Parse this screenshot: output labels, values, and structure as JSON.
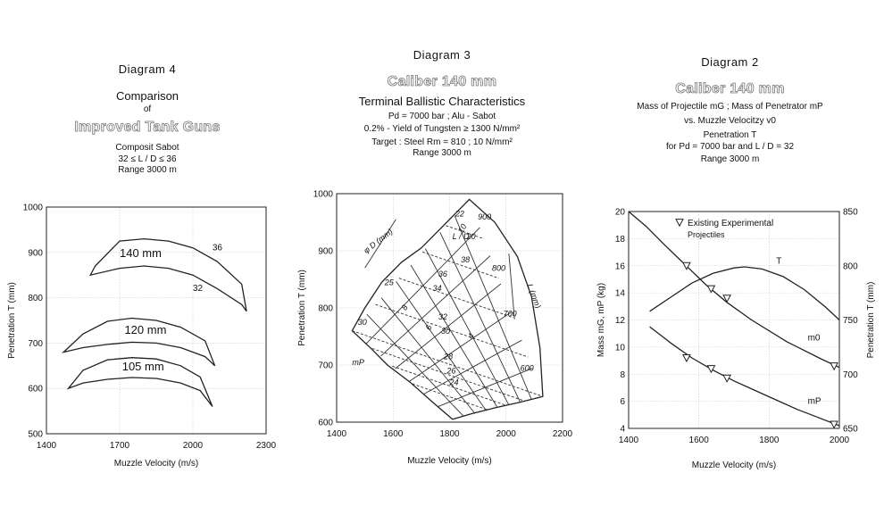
{
  "panels": {
    "d4": {
      "diagram": "Diagram  4",
      "title": "Comparison",
      "of": "of",
      "subtitle": "Improved Tank Guns",
      "info1": "Composit Sabot",
      "info2": "32  ≤  L / D  ≤  36",
      "info3": "Range  3000  m"
    },
    "d3": {
      "diagram": "Diagram  3",
      "caliber": "Caliber  140 mm",
      "title": "Terminal Ballistic Characteristics",
      "info1": "Pd = 7000 bar ; Alu - Sabot",
      "info2": "0.2% - Yield of Tungsten ≥ 1300 N/mm²",
      "info3": "Target : Steel Rm = 810 ; 10 N/mm²",
      "info4": "Range  3000 m"
    },
    "d2": {
      "diagram": "Diagram  2",
      "caliber": "Caliber  140 mm",
      "title": "Mass of Projectile mG ; Mass of Penetrator mP",
      "vs": "vs.  Muzzle Velocitzy v0",
      "info1": "Penetration T",
      "info2": "for  Pd = 7000 bar  and  L / D = 32",
      "info3": "Range  3000 m"
    }
  },
  "chart_data": [
    {
      "type": "line",
      "title": "Comparison of Improved Tank Guns",
      "xlabel": "Muzzle Velocity  (m/s)",
      "ylabel": "Penetration T (mm)",
      "xlim": [
        1400,
        2300
      ],
      "ylim": [
        500,
        1000
      ],
      "xticks": [
        "1400",
        "1700",
        "2000",
        "2300"
      ],
      "yticks": [
        "500",
        "600",
        "700",
        "800",
        "900",
        "1000"
      ],
      "grid": true,
      "series": [
        {
          "name": "140 mm",
          "upper_label": "36",
          "lower_label": "32",
          "upper": [
            [
              1600,
              870
            ],
            [
              1700,
              925
            ],
            [
              1800,
              930
            ],
            [
              1900,
              925
            ],
            [
              2000,
              910
            ],
            [
              2100,
              880
            ],
            [
              2200,
              830
            ],
            [
              2220,
              770
            ]
          ],
          "lower": [
            [
              1580,
              850
            ],
            [
              1700,
              865
            ],
            [
              1800,
              870
            ],
            [
              1900,
              865
            ],
            [
              2000,
              850
            ],
            [
              2100,
              820
            ],
            [
              2200,
              785
            ],
            [
              2220,
              770
            ]
          ]
        },
        {
          "name": "120 mm",
          "upper": [
            [
              1470,
              680
            ],
            [
              1550,
              720
            ],
            [
              1650,
              748
            ],
            [
              1750,
              755
            ],
            [
              1850,
              750
            ],
            [
              1950,
              735
            ],
            [
              2050,
              705
            ],
            [
              2090,
              650
            ]
          ],
          "lower": [
            [
              1470,
              680
            ],
            [
              1550,
              690
            ],
            [
              1650,
              697
            ],
            [
              1750,
              702
            ],
            [
              1850,
              700
            ],
            [
              1950,
              690
            ],
            [
              2050,
              670
            ],
            [
              2090,
              650
            ]
          ]
        },
        {
          "name": "105 mm",
          "upper": [
            [
              1490,
              600
            ],
            [
              1550,
              640
            ],
            [
              1650,
              663
            ],
            [
              1750,
              668
            ],
            [
              1850,
              665
            ],
            [
              1950,
              650
            ],
            [
              2030,
              625
            ],
            [
              2080,
              560
            ]
          ],
          "lower": [
            [
              1490,
              600
            ],
            [
              1550,
              612
            ],
            [
              1650,
              620
            ],
            [
              1750,
              624
            ],
            [
              1850,
              622
            ],
            [
              1950,
              612
            ],
            [
              2030,
              595
            ],
            [
              2080,
              560
            ]
          ]
        }
      ]
    },
    {
      "type": "line",
      "title": "Terminal Ballistic Characteristics",
      "xlabel": "Muzzle Velocity (m/s)",
      "ylabel": "Penetration T (mm)",
      "xlim": [
        1400,
        2200
      ],
      "ylim": [
        600,
        1000
      ],
      "xticks": [
        "1400",
        "1600",
        "1800",
        "2000",
        "2200"
      ],
      "yticks": [
        "600",
        "700",
        "800",
        "900",
        "1000"
      ],
      "grid": true,
      "boundary": [
        [
          1455,
          760
        ],
        [
          1500,
          800
        ],
        [
          1560,
          845
        ],
        [
          1630,
          880
        ],
        [
          1700,
          905
        ],
        [
          1780,
          945
        ],
        [
          1870,
          990
        ],
        [
          1960,
          950
        ],
        [
          2040,
          890
        ],
        [
          2090,
          820
        ],
        [
          2120,
          730
        ],
        [
          2130,
          645
        ],
        [
          2050,
          635
        ],
        [
          1960,
          625
        ],
        [
          1880,
          615
        ],
        [
          1810,
          605
        ],
        [
          1740,
          635
        ],
        [
          1660,
          670
        ],
        [
          1580,
          700
        ],
        [
          1520,
          730
        ],
        [
          1455,
          760
        ]
      ],
      "iso_labels": [
        "22",
        "25",
        "30",
        "20",
        "38",
        "36",
        "34",
        "32",
        "30",
        "28",
        "26",
        "24",
        "900",
        "800",
        "700",
        "600"
      ],
      "axis_labels": [
        "φ D (mm)",
        "L / D",
        "L (mm)",
        "mP"
      ],
      "rotated_labels": [
        "10",
        "8",
        "6",
        "4"
      ]
    },
    {
      "type": "line",
      "title": "Mass of Projectile and Penetrator vs. Muzzle Velocity",
      "xlabel": "Muzzle Velocity  (m/s)",
      "ylabel": "Mass mG, mP (kg)",
      "ylabel_right": "Penetration T (mm)",
      "xlim": [
        1400,
        2000
      ],
      "ylim": [
        4,
        20
      ],
      "ylim_right": [
        650,
        850
      ],
      "xticks": [
        "1400",
        "1600",
        "1800",
        "2000"
      ],
      "yticks": [
        "4",
        "6",
        "8",
        "10",
        "12",
        "14",
        "16",
        "18",
        "20"
      ],
      "yticks_right": [
        "650",
        "700",
        "750",
        "800",
        "850"
      ],
      "legend": "Existing Experimental Projectiles",
      "grid": true,
      "series": [
        {
          "name": "m0",
          "axis": "left",
          "x": [
            1400,
            1450,
            1500,
            1560,
            1620,
            1680,
            1750,
            1850,
            1950,
            2000
          ],
          "values": [
            20,
            18.9,
            17.6,
            16.1,
            14.6,
            13.3,
            12.0,
            10.4,
            9.1,
            8.5
          ]
        },
        {
          "name": "mP",
          "axis": "left",
          "x": [
            1460,
            1520,
            1580,
            1640,
            1700,
            1760,
            1820,
            1880,
            1940,
            2000
          ],
          "values": [
            11.5,
            10.3,
            9.2,
            8.3,
            7.5,
            6.8,
            6.1,
            5.4,
            4.8,
            4.2
          ]
        },
        {
          "name": "T",
          "axis": "right",
          "x": [
            1460,
            1520,
            1580,
            1640,
            1700,
            1730,
            1780,
            1840,
            1900,
            1960,
            2000
          ],
          "values": [
            758,
            771,
            784,
            793,
            798,
            799,
            797,
            790,
            778,
            762,
            750
          ]
        }
      ],
      "markers": [
        {
          "x": 1565,
          "y": 16.0
        },
        {
          "x": 1635,
          "y": 14.3
        },
        {
          "x": 1680,
          "y": 13.6
        },
        {
          "x": 1565,
          "y": 9.2
        },
        {
          "x": 1635,
          "y": 8.4
        },
        {
          "x": 1680,
          "y": 7.7
        },
        {
          "x": 1985,
          "y": 8.6
        },
        {
          "x": 1985,
          "y": 4.3
        }
      ]
    }
  ]
}
